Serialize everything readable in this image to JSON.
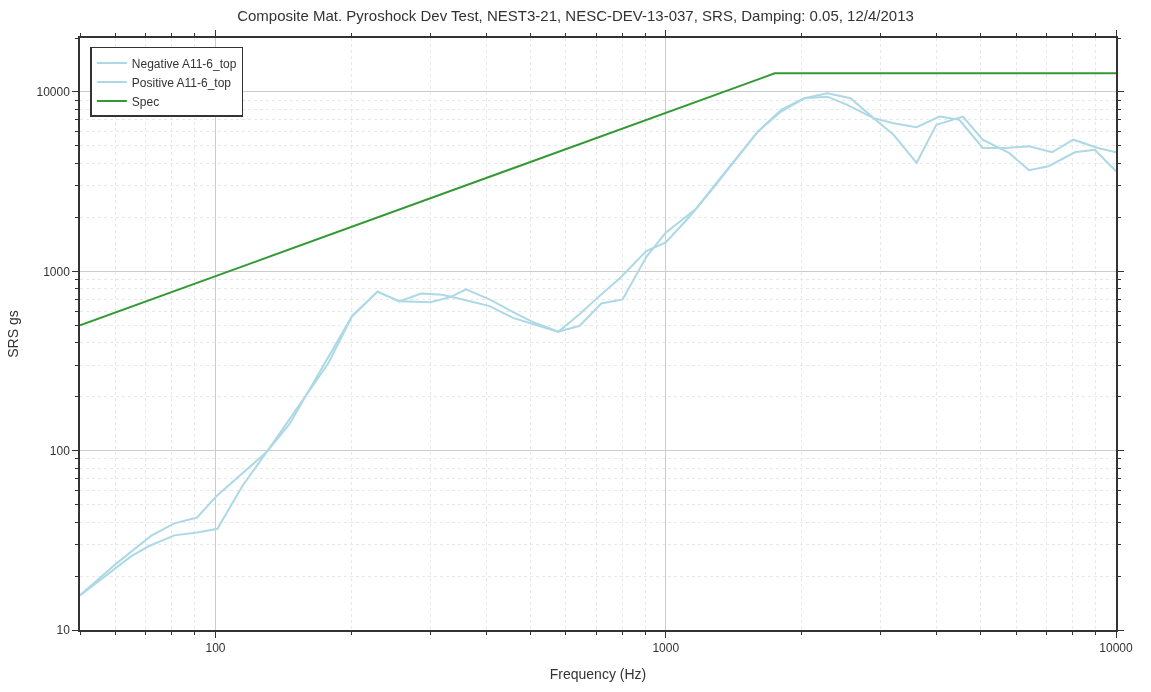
{
  "chart_data": {
    "type": "line",
    "title": "Composite Mat. Pyroshock Dev Test, NEST3-21, NESC-DEV-13-037, SRS, Damping: 0.05, 12/4/2013",
    "xlabel": "Frequency (Hz)",
    "ylabel": "SRS gs",
    "log": "xy",
    "grid": true,
    "legend": "top left",
    "marker": "none",
    "line_style": "solid",
    "xlim": [
      50,
      10000
    ],
    "xticks": [
      100,
      1000,
      10000
    ],
    "ylim": [
      10,
      20000
    ],
    "yticks": [
      10,
      100,
      1000,
      10000
    ],
    "series": [
      {
        "name": "Negative A11-6_top",
        "color": "#add8e6",
        "x": [
          50,
          60,
          72,
          81,
          91,
          101,
          130,
          146,
          201,
          229,
          256,
          286,
          319,
          360,
          406,
          458,
          577,
          644,
          711,
          794,
          905,
          1000,
          1125,
          1276,
          1449,
          1603,
          1804,
          2030,
          2286,
          2573,
          2896,
          3206,
          3607,
          3990,
          4571,
          5058,
          5786,
          6412,
          7080,
          8106,
          8974,
          10000
        ],
        "values": [
          15.6,
          23.3,
          33.6,
          39.3,
          42.4,
          56.5,
          98.5,
          141,
          562,
          771,
          680,
          752,
          740,
          690,
          640,
          550,
          460,
          578,
          725,
          925,
          1297,
          1449,
          1995,
          2924,
          4375,
          6026,
          7780,
          9226,
          9840,
          9226,
          7145,
          5773,
          4027,
          6562,
          7295,
          5420,
          4571,
          3664,
          3856,
          4613,
          4766,
          3614
        ]
      },
      {
        "name": "Positive A11-6_top",
        "color": "#add8e6",
        "x": [
          50,
          65,
          71,
          81,
          91,
          101,
          115,
          130,
          178,
          201,
          229,
          256,
          300,
          332,
          360,
          406,
          458,
          506,
          577,
          644,
          719,
          802,
          905,
          1000,
          1164,
          1331,
          1603,
          1804,
          2030,
          2286,
          2529,
          2896,
          3206,
          3607,
          4055,
          4487,
          5058,
          5689,
          6412,
          7211,
          8035,
          9120,
          10000
        ],
        "values": [
          15.6,
          25.8,
          29.3,
          33.7,
          35,
          36.7,
          64.2,
          98.5,
          307,
          562,
          771,
          680,
          673,
          718,
          794,
          697,
          593,
          522,
          460,
          497,
          662,
          697,
          1202,
          1644,
          2218,
          3388,
          6026,
          7946,
          9226,
          9420,
          8472,
          7145,
          6699,
          6368,
          7295,
          6998,
          4875,
          4875,
          4977,
          4613,
          5420,
          4875,
          4613
        ]
      },
      {
        "name": "Spec",
        "color": "#339933",
        "x": [
          50,
          1746,
          10000
        ],
        "values": [
          500,
          12700,
          12700
        ]
      }
    ]
  }
}
